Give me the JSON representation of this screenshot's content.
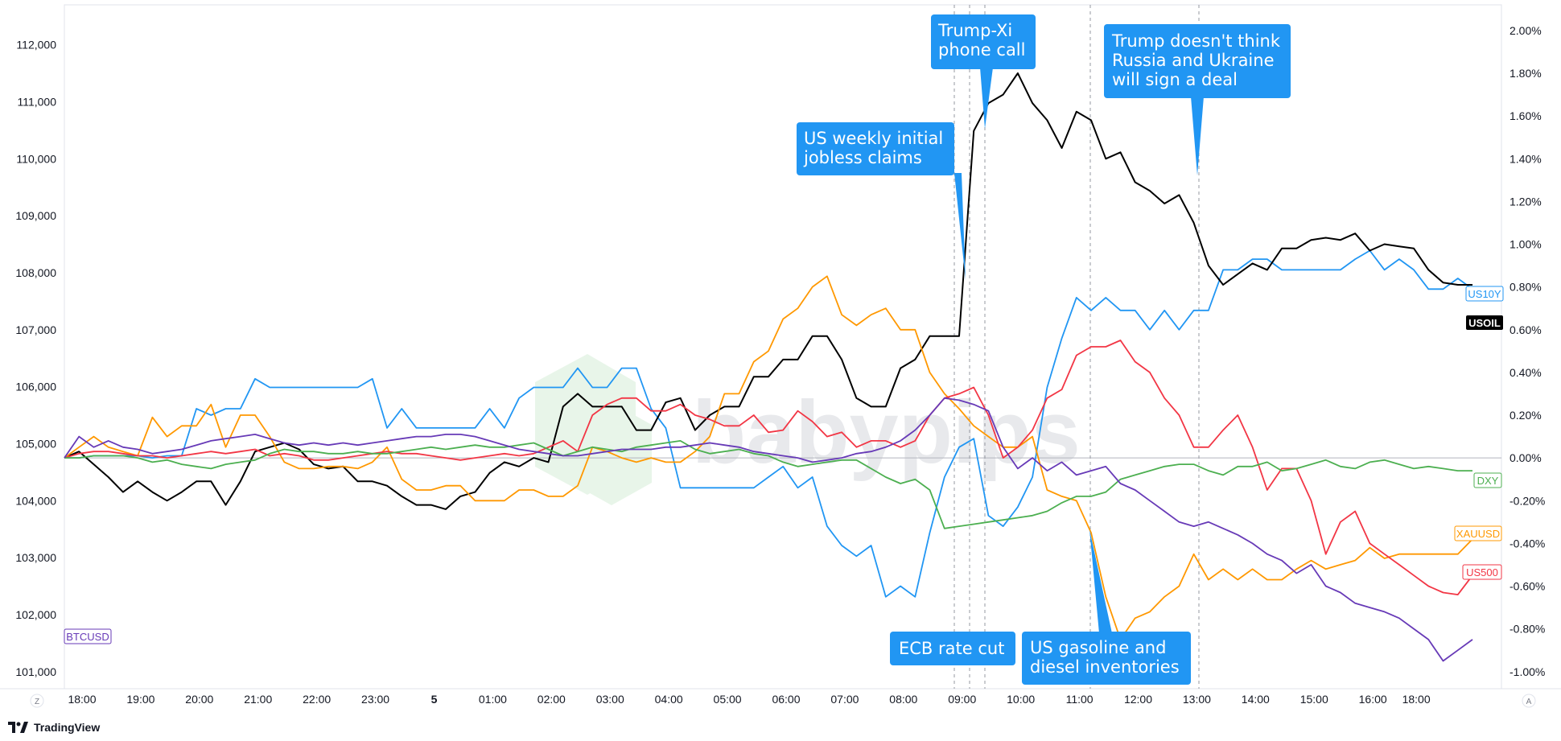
{
  "logo": {
    "text": "TradingView"
  },
  "corner": {
    "left": "Z",
    "right": "A"
  },
  "chart_data": {
    "type": "line",
    "x": [
      "18:00",
      "18:15",
      "18:30",
      "18:45",
      "19:00",
      "19:15",
      "19:30",
      "19:45",
      "20:00",
      "20:15",
      "20:30",
      "20:45",
      "21:00",
      "21:15",
      "21:30",
      "21:45",
      "22:00",
      "22:15",
      "22:30",
      "22:45",
      "23:00",
      "23:15",
      "23:30",
      "23:45",
      "00:00",
      "00:15",
      "00:30",
      "00:45",
      "01:00",
      "01:15",
      "01:30",
      "01:45",
      "02:00",
      "02:15",
      "02:30",
      "02:45",
      "03:00",
      "03:15",
      "03:30",
      "03:45",
      "04:00",
      "04:15",
      "04:30",
      "04:45",
      "05:00",
      "05:15",
      "05:30",
      "05:45",
      "06:00",
      "06:15",
      "06:30",
      "06:45",
      "07:00",
      "07:15",
      "07:30",
      "07:45",
      "08:00",
      "08:15",
      "08:30",
      "08:45",
      "09:00",
      "09:15",
      "09:30",
      "09:45",
      "10:00",
      "10:15",
      "10:30",
      "10:45",
      "11:00",
      "11:15",
      "11:30",
      "11:45",
      "12:00",
      "12:15",
      "12:30",
      "12:45",
      "13:00",
      "13:15",
      "13:30",
      "13:45",
      "14:00",
      "14:15",
      "14:30",
      "14:45",
      "15:00",
      "15:15",
      "15:30",
      "15:45",
      "16:00",
      "16:15",
      "16:30",
      "16:45",
      "17:00",
      "17:15",
      "17:30",
      "17:45",
      "18:00"
    ],
    "x_ticks": [
      "18:00",
      "19:00",
      "20:00",
      "21:00",
      "22:00",
      "23:00",
      "5",
      "01:00",
      "02:00",
      "03:00",
      "04:00",
      "05:00",
      "06:00",
      "07:00",
      "08:00",
      "09:00",
      "10:00",
      "11:00",
      "12:00",
      "13:00",
      "14:00",
      "15:00",
      "16:00",
      "18:00"
    ],
    "y_left_ticks": [
      "101,000",
      "102,000",
      "103,000",
      "104,000",
      "105,000",
      "106,000",
      "107,000",
      "108,000",
      "109,000",
      "110,000",
      "111,000",
      "112,000"
    ],
    "y_left_range": [
      100700,
      112700
    ],
    "y_right_ticks": [
      "-1.00%",
      "-0.80%",
      "-0.60%",
      "-0.40%",
      "-0.20%",
      "0.00%",
      "0.20%",
      "0.40%",
      "0.60%",
      "0.80%",
      "1.00%",
      "1.20%",
      "1.40%",
      "1.60%",
      "1.80%",
      "2.00%"
    ],
    "y_right_range": [
      -1.08,
      2.12
    ],
    "zero_line": 0.0,
    "series": [
      {
        "name": "US10Y",
        "color": "#2196F3",
        "values": [
          0,
          0,
          0.01,
          0.01,
          0.01,
          0.01,
          0,
          0.01,
          0.01,
          0.23,
          0.2,
          0.23,
          0.23,
          0.37,
          0.33,
          0.33,
          0.33,
          0.33,
          0.33,
          0.33,
          0.33,
          0.37,
          0.14,
          0.23,
          0.14,
          0.14,
          0.14,
          0.14,
          0.14,
          0.23,
          0.14,
          0.28,
          0.33,
          0.33,
          0.33,
          0.42,
          0.33,
          0.33,
          0.42,
          0.42,
          0.23,
          0.14,
          -0.14,
          -0.14,
          -0.14,
          -0.14,
          -0.14,
          -0.14,
          -0.09,
          -0.04,
          -0.14,
          -0.09,
          -0.32,
          -0.41,
          -0.46,
          -0.41,
          -0.65,
          -0.6,
          -0.65,
          -0.35,
          -0.09,
          0.05,
          0.09,
          -0.27,
          -0.32,
          -0.23,
          -0.09,
          0.33,
          0.56,
          0.75,
          0.69,
          0.75,
          0.69,
          0.69,
          0.6,
          0.69,
          0.6,
          0.69,
          0.69,
          0.88,
          0.88,
          0.93,
          0.93,
          0.88,
          0.88,
          0.88,
          0.88,
          0.88,
          0.93,
          0.97,
          0.88,
          0.93,
          0.88,
          0.79,
          0.79,
          0.84,
          0.79
        ]
      },
      {
        "name": "USOIL",
        "color": "#000000",
        "values": [
          0,
          0.03,
          -0.03,
          -0.09,
          -0.16,
          -0.11,
          -0.16,
          -0.2,
          -0.16,
          -0.11,
          -0.11,
          -0.22,
          -0.11,
          0.03,
          0.05,
          0.07,
          0.04,
          -0.03,
          -0.05,
          -0.04,
          -0.11,
          -0.11,
          -0.13,
          -0.18,
          -0.22,
          -0.22,
          -0.24,
          -0.18,
          -0.16,
          -0.07,
          -0.02,
          -0.04,
          0,
          -0.02,
          0.24,
          0.3,
          0.24,
          0.24,
          0.24,
          0.13,
          0.13,
          0.26,
          0.28,
          0.13,
          0.2,
          0.24,
          0.24,
          0.38,
          0.38,
          0.46,
          0.46,
          0.57,
          0.57,
          0.46,
          0.28,
          0.24,
          0.24,
          0.42,
          0.46,
          0.57,
          0.57,
          0.57,
          1.53,
          1.66,
          1.7,
          1.8,
          1.66,
          1.58,
          1.45,
          1.62,
          1.58,
          1.4,
          1.43,
          1.29,
          1.25,
          1.19,
          1.23,
          1.1,
          0.9,
          0.81,
          0.86,
          0.91,
          0.88,
          0.98,
          0.98,
          1.02,
          1.03,
          1.02,
          1.05,
          0.97,
          1,
          0.99,
          0.98,
          0.88,
          0.82,
          0.81,
          0.81
        ]
      },
      {
        "name": "XAUUSD",
        "color": "#FF9800",
        "values": [
          0,
          0.05,
          0.1,
          0.05,
          0.03,
          0.01,
          0.19,
          0.1,
          0.15,
          0.15,
          0.25,
          0.05,
          0.2,
          0.2,
          0.1,
          -0.02,
          -0.05,
          -0.05,
          -0.04,
          -0.04,
          -0.05,
          -0.02,
          0.05,
          -0.1,
          -0.15,
          -0.15,
          -0.13,
          -0.13,
          -0.2,
          -0.2,
          -0.2,
          -0.15,
          -0.15,
          -0.18,
          -0.18,
          -0.13,
          0.05,
          0.03,
          0,
          -0.02,
          0,
          -0.02,
          -0.02,
          0.03,
          0.1,
          0.3,
          0.3,
          0.45,
          0.5,
          0.65,
          0.7,
          0.8,
          0.85,
          0.67,
          0.62,
          0.67,
          0.7,
          0.6,
          0.6,
          0.4,
          0.3,
          0.23,
          0.15,
          0.1,
          0.05,
          0.05,
          0.1,
          -0.15,
          -0.18,
          -0.2,
          -0.35,
          -0.65,
          -0.85,
          -0.75,
          -0.72,
          -0.65,
          -0.6,
          -0.45,
          -0.57,
          -0.52,
          -0.57,
          -0.52,
          -0.57,
          -0.57,
          -0.52,
          -0.48,
          -0.52,
          -0.5,
          -0.48,
          -0.42,
          -0.47,
          -0.45,
          -0.45,
          -0.45,
          -0.45,
          -0.45,
          -0.38
        ]
      },
      {
        "name": "US500",
        "color": "#F23645",
        "values": [
          0,
          0.02,
          0.03,
          0.03,
          0.02,
          0.01,
          0.01,
          0,
          0.01,
          0.02,
          0.03,
          0.02,
          0.03,
          0.04,
          0.01,
          0.02,
          0.01,
          -0.01,
          -0.01,
          0,
          0.01,
          0.02,
          0.03,
          0.02,
          0.02,
          0.01,
          0,
          -0.01,
          0,
          0.01,
          0.02,
          0.01,
          0.02,
          0.05,
          0.08,
          0.03,
          0.2,
          0.25,
          0.28,
          0.28,
          0.22,
          0.22,
          0.25,
          0.2,
          0.18,
          0.15,
          0.15,
          0.2,
          0.12,
          0.13,
          0.22,
          0.17,
          0.1,
          0.12,
          0.05,
          0.08,
          0.08,
          0.05,
          0.08,
          0.2,
          0.28,
          0.3,
          0.33,
          0.2,
          0,
          0.05,
          0.13,
          0.28,
          0.32,
          0.48,
          0.52,
          0.52,
          0.55,
          0.45,
          0.4,
          0.28,
          0.2,
          0.05,
          0.05,
          0.13,
          0.2,
          0.05,
          -0.15,
          -0.05,
          -0.05,
          -0.2,
          -0.45,
          -0.3,
          -0.25,
          -0.4,
          -0.45,
          -0.5,
          -0.55,
          -0.6,
          -0.63,
          -0.64,
          -0.55
        ]
      },
      {
        "name": "DXY",
        "color": "#4CAF50",
        "values": [
          0,
          0,
          0.01,
          0.01,
          0.01,
          0,
          -0.02,
          -0.01,
          -0.03,
          -0.04,
          -0.05,
          -0.03,
          -0.02,
          -0.01,
          0.02,
          0.04,
          0.03,
          0.03,
          0.02,
          0.02,
          0.03,
          0.02,
          0.02,
          0.03,
          0.04,
          0.05,
          0.04,
          0.05,
          0.06,
          0.05,
          0.05,
          0.06,
          0.07,
          0.04,
          0.01,
          0.03,
          0.05,
          0.04,
          0.03,
          0.05,
          0.06,
          0.07,
          0.08,
          0.04,
          0.02,
          0.03,
          0.04,
          0.02,
          0.01,
          -0.02,
          -0.04,
          -0.03,
          -0.02,
          -0.01,
          -0.01,
          -0.05,
          -0.09,
          -0.12,
          -0.1,
          -0.15,
          -0.33,
          -0.32,
          -0.31,
          -0.3,
          -0.29,
          -0.28,
          -0.27,
          -0.25,
          -0.21,
          -0.18,
          -0.18,
          -0.16,
          -0.1,
          -0.08,
          -0.06,
          -0.04,
          -0.03,
          -0.03,
          -0.06,
          -0.08,
          -0.04,
          -0.04,
          -0.02,
          -0.06,
          -0.05,
          -0.03,
          -0.01,
          -0.04,
          -0.05,
          -0.02,
          -0.01,
          -0.03,
          -0.05,
          -0.04,
          -0.05,
          -0.06,
          -0.06
        ]
      },
      {
        "name": "BTCUSD",
        "color": "#673AB7",
        "values": [
          0,
          0.1,
          0.05,
          0.08,
          0.05,
          0.04,
          0.02,
          0.03,
          0.04,
          0.06,
          0.08,
          0.09,
          0.1,
          0.11,
          0.09,
          0.07,
          0.06,
          0.07,
          0.06,
          0.07,
          0.06,
          0.07,
          0.08,
          0.09,
          0.1,
          0.1,
          0.11,
          0.11,
          0.1,
          0.08,
          0.06,
          0.04,
          0.03,
          0.02,
          0.01,
          0.01,
          0.02,
          0.03,
          0.04,
          0.04,
          0.04,
          0.05,
          0.05,
          0.06,
          0.07,
          0.06,
          0.05,
          0.03,
          0.02,
          0.01,
          0,
          -0.02,
          -0.01,
          0,
          0.02,
          0.03,
          0.05,
          0.08,
          0.13,
          0.2,
          0.28,
          0.27,
          0.25,
          0.22,
          0.05,
          -0.05,
          0,
          -0.06,
          -0.02,
          -0.08,
          -0.06,
          -0.04,
          -0.12,
          -0.15,
          -0.2,
          -0.25,
          -0.3,
          -0.32,
          -0.3,
          -0.33,
          -0.36,
          -0.4,
          -0.45,
          -0.48,
          -0.54,
          -0.5,
          -0.6,
          -0.63,
          -0.68,
          -0.7,
          -0.72,
          -0.75,
          -0.8,
          -0.85,
          -0.95,
          -0.9,
          -0.85
        ]
      }
    ],
    "annotations": [
      {
        "label": "US weekly initial jobless claims"
      },
      {
        "label": "Trump-Xi phone call"
      },
      {
        "label": "Trump doesn't think Russia and Ukraine will sign a deal"
      },
      {
        "label": "ECB rate cut"
      },
      {
        "label": "US gasoline and diesel inventories"
      }
    ],
    "grid": false
  }
}
